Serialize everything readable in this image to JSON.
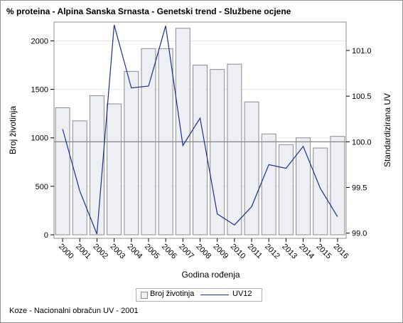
{
  "title": "% proteina - Alpina Sanska Srnasta - Genetski trend - Službene ocjene",
  "footnote": "Koze - Nacionalni obračun UV - 2001",
  "legend": {
    "bar_label": "Broj životinja",
    "line_label": "UV12"
  },
  "colors": {
    "bar_fill": "#edeff5",
    "bar_stroke": "#8c8c8c",
    "line": "#1a2f8a",
    "ref_line": "#8c8c8c",
    "grid": "#e6e6e6"
  },
  "chart_data": {
    "type": "bar",
    "xlabel": "Godina rođenja",
    "ylabel": "Broj životinja",
    "y2label": "Standardizirana UV",
    "categories": [
      "2000",
      "2001",
      "2002",
      "2003",
      "2004",
      "2005",
      "2006",
      "2007",
      "2008",
      "2009",
      "2010",
      "2011",
      "2012",
      "2013",
      "2014",
      "2015",
      "2016"
    ],
    "ylim": [
      0,
      2150
    ],
    "y_ticks": [
      0,
      500,
      1000,
      1500,
      2000
    ],
    "y2lim": [
      98.99,
      101.28
    ],
    "y2_ticks": [
      "99.0",
      "99.5",
      "100.0",
      "100.5",
      "101.0"
    ],
    "reference_line_y2": 100.0,
    "series": [
      {
        "name": "Broj životinja",
        "type": "bar",
        "values": [
          1310,
          1175,
          1435,
          1350,
          1685,
          1920,
          1920,
          2130,
          1750,
          1705,
          1760,
          1370,
          1040,
          930,
          1000,
          895,
          1015
        ]
      },
      {
        "name": "UV12",
        "type": "line",
        "axis": "y2",
        "values": [
          100.14,
          99.46,
          98.99,
          101.28,
          100.59,
          100.61,
          101.27,
          99.96,
          100.26,
          99.21,
          99.09,
          99.29,
          99.75,
          99.71,
          99.95,
          99.49,
          99.18
        ]
      }
    ],
    "legend_position": "bottom"
  }
}
